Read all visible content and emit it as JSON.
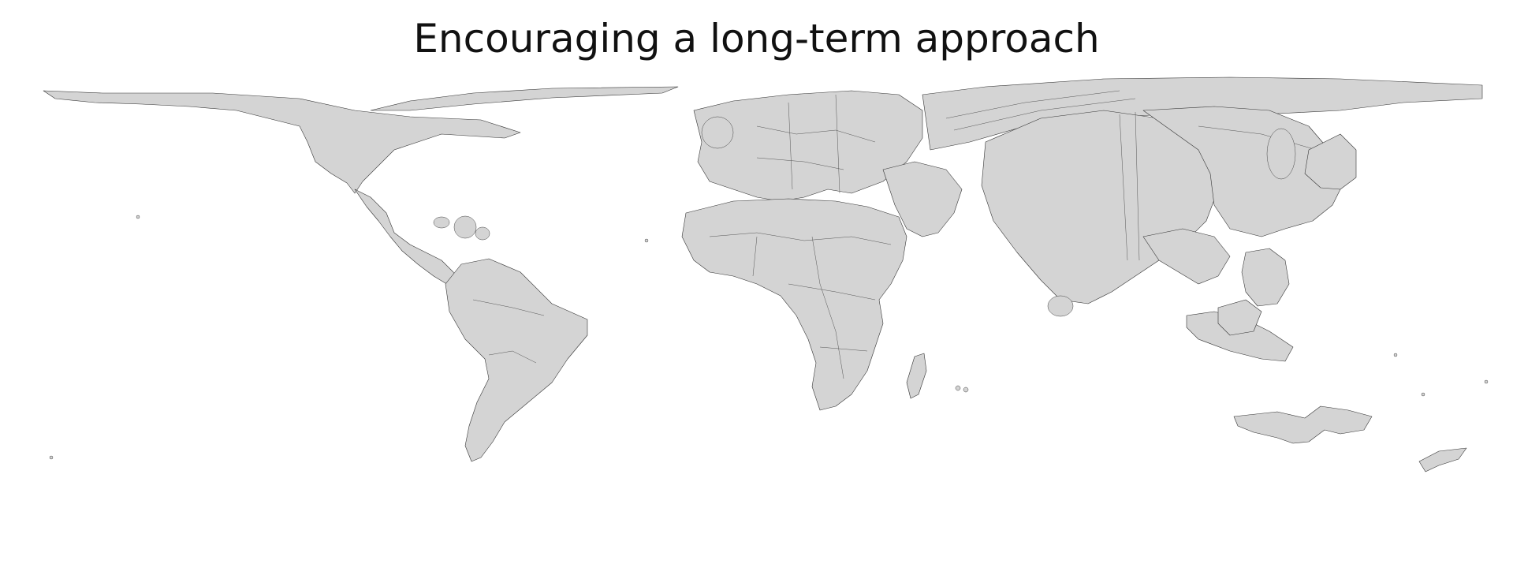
{
  "title": "Encouraging a long-term approach",
  "colors": {
    "background": "#ffffff",
    "land": "#d4d4d4",
    "border": "#333333",
    "title": "#111111"
  }
}
